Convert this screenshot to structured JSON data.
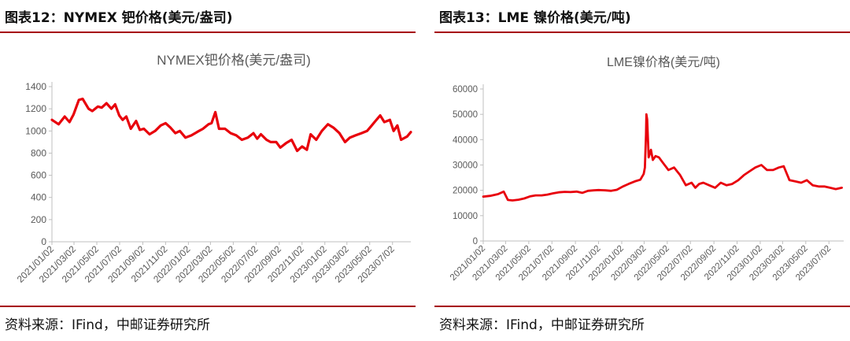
{
  "left": {
    "figure_title": "图表12：NYMEX 钯价格(美元/盎司)",
    "source": "资料来源：IFind，中邮证券研究所"
  },
  "right": {
    "figure_title": "图表13：LME 镍价格(美元/吨)",
    "source": "资料来源：IFind，中邮证券研究所"
  },
  "colors": {
    "accent": "#a6000e",
    "line": "#e8000b",
    "axis": "#bfbfbf",
    "tick_text": "#595959"
  },
  "chart_data": [
    {
      "type": "line",
      "title": "NYMEX钯价格(美元/盎司)",
      "ylim": [
        0,
        1400
      ],
      "yticks": [
        0,
        200,
        400,
        600,
        800,
        1000,
        1200,
        1400
      ],
      "xlim": [
        "2021/01/02",
        "2023/08/20"
      ],
      "x_tick_labels": [
        "2021/01/02",
        "2021/03/02",
        "2021/05/02",
        "2021/07/02",
        "2021/09/02",
        "2021/11/02",
        "2022/01/02",
        "2022/03/02",
        "2022/05/02",
        "2022/07/02",
        "2022/09/02",
        "2022/11/02",
        "2023/01/02",
        "2023/03/02",
        "2023/05/02",
        "2023/07/02"
      ],
      "grid": false,
      "series": [
        {
          "x": [
            "2021/01/02",
            "2021/01/20",
            "2021/02/05",
            "2021/02/18",
            "2021/03/01",
            "2021/03/15",
            "2021/03/25",
            "2021/04/10",
            "2021/04/20",
            "2021/05/05",
            "2021/05/15",
            "2021/05/28",
            "2021/06/10",
            "2021/06/20",
            "2021/07/01",
            "2021/07/10",
            "2021/07/20",
            "2021/08/01",
            "2021/08/15",
            "2021/08/25",
            "2021/09/05",
            "2021/09/20",
            "2021/10/05",
            "2021/10/20",
            "2021/11/02",
            "2021/11/15",
            "2021/11/28",
            "2021/12/10",
            "2021/12/25",
            "2022/01/10",
            "2022/01/25",
            "2022/02/10",
            "2022/02/25",
            "2022/03/05",
            "2022/03/15",
            "2022/03/25",
            "2022/04/10",
            "2022/04/25",
            "2022/05/10",
            "2022/05/25",
            "2022/06/10",
            "2022/06/25",
            "2022/07/05",
            "2022/07/15",
            "2022/07/30",
            "2022/08/10",
            "2022/08/25",
            "2022/09/05",
            "2022/09/20",
            "2022/10/05",
            "2022/10/20",
            "2022/11/02",
            "2022/11/15",
            "2022/11/25",
            "2022/12/10",
            "2022/12/25",
            "2023/01/10",
            "2023/01/25",
            "2023/02/10",
            "2023/02/25",
            "2023/03/10",
            "2023/03/25",
            "2023/04/10",
            "2023/04/25",
            "2023/05/05",
            "2023/05/15",
            "2023/05/30",
            "2023/06/10",
            "2023/06/25",
            "2023/07/05",
            "2023/07/15",
            "2023/07/25",
            "2023/08/10",
            "2023/08/20"
          ],
          "y": [
            1100,
            1060,
            1130,
            1080,
            1150,
            1280,
            1290,
            1200,
            1180,
            1220,
            1210,
            1250,
            1200,
            1240,
            1140,
            1100,
            1130,
            1020,
            1090,
            1010,
            1020,
            970,
            1000,
            1050,
            1070,
            1030,
            980,
            1000,
            940,
            960,
            990,
            1020,
            1060,
            1070,
            1170,
            1020,
            1020,
            980,
            960,
            920,
            940,
            980,
            930,
            970,
            920,
            900,
            900,
            850,
            890,
            920,
            820,
            860,
            830,
            970,
            920,
            1000,
            1060,
            1030,
            980,
            900,
            940,
            960,
            980,
            1000,
            1040,
            1080,
            1140,
            1080,
            1100,
            1000,
            1050,
            920,
            950,
            990
          ]
        }
      ]
    },
    {
      "type": "line",
      "title": "LME镍价格(美元/吨)",
      "ylim": [
        0,
        60000
      ],
      "yticks": [
        0,
        10000,
        20000,
        30000,
        40000,
        50000,
        60000
      ],
      "xlim": [
        "2021/01/02",
        "2023/08/10"
      ],
      "x_tick_labels": [
        "2021/01/02",
        "2021/03/02",
        "2021/05/02",
        "2021/07/02",
        "2021/09/02",
        "2021/11/02",
        "2022/01/02",
        "2022/03/02",
        "2022/05/02",
        "2022/07/02",
        "2022/09/02",
        "2022/11/02",
        "2023/01/02",
        "2023/03/02",
        "2023/05/02",
        "2023/07/02"
      ],
      "grid": false,
      "series": [
        {
          "x": [
            "2021/01/02",
            "2021/01/20",
            "2021/02/10",
            "2021/02/25",
            "2021/03/08",
            "2021/03/20",
            "2021/04/05",
            "2021/04/20",
            "2021/05/05",
            "2021/05/20",
            "2021/06/05",
            "2021/06/20",
            "2021/07/05",
            "2021/07/20",
            "2021/08/05",
            "2021/08/20",
            "2021/09/05",
            "2021/09/20",
            "2021/10/05",
            "2021/10/20",
            "2021/11/02",
            "2021/11/20",
            "2021/12/05",
            "2021/12/20",
            "2022/01/05",
            "2022/01/20",
            "2022/02/05",
            "2022/02/20",
            "2022/03/01",
            "2022/03/04",
            "2022/03/07",
            "2022/03/08",
            "2022/03/10",
            "2022/03/14",
            "2022/03/20",
            "2022/03/25",
            "2022/04/01",
            "2022/04/10",
            "2022/04/20",
            "2022/05/05",
            "2022/05/20",
            "2022/06/05",
            "2022/06/20",
            "2022/07/05",
            "2022/07/15",
            "2022/07/25",
            "2022/08/05",
            "2022/08/20",
            "2022/09/05",
            "2022/09/20",
            "2022/10/05",
            "2022/10/20",
            "2022/11/05",
            "2022/11/20",
            "2022/12/05",
            "2022/12/20",
            "2023/01/05",
            "2023/01/20",
            "2023/02/05",
            "2023/02/20",
            "2023/03/05",
            "2023/03/20",
            "2023/04/05",
            "2023/04/20",
            "2023/05/05",
            "2023/05/20",
            "2023/06/05",
            "2023/06/20",
            "2023/07/05",
            "2023/07/20",
            "2023/08/05"
          ],
          "y": [
            17500,
            17800,
            18500,
            19500,
            16200,
            16000,
            16300,
            16800,
            17600,
            18000,
            18000,
            18300,
            18800,
            19200,
            19400,
            19300,
            19500,
            19000,
            19800,
            20000,
            20100,
            20000,
            19800,
            20200,
            21500,
            22500,
            23500,
            24200,
            26500,
            29000,
            42000,
            50000,
            48000,
            33000,
            36000,
            32000,
            33500,
            33000,
            31000,
            28000,
            29000,
            26000,
            22000,
            23000,
            21000,
            22500,
            23000,
            22000,
            21000,
            23000,
            22000,
            22500,
            24000,
            26000,
            27500,
            29000,
            30000,
            28000,
            28000,
            29000,
            29500,
            24000,
            23500,
            23000,
            24000,
            22000,
            21500,
            21500,
            21000,
            20500,
            21000
          ]
        }
      ]
    }
  ]
}
